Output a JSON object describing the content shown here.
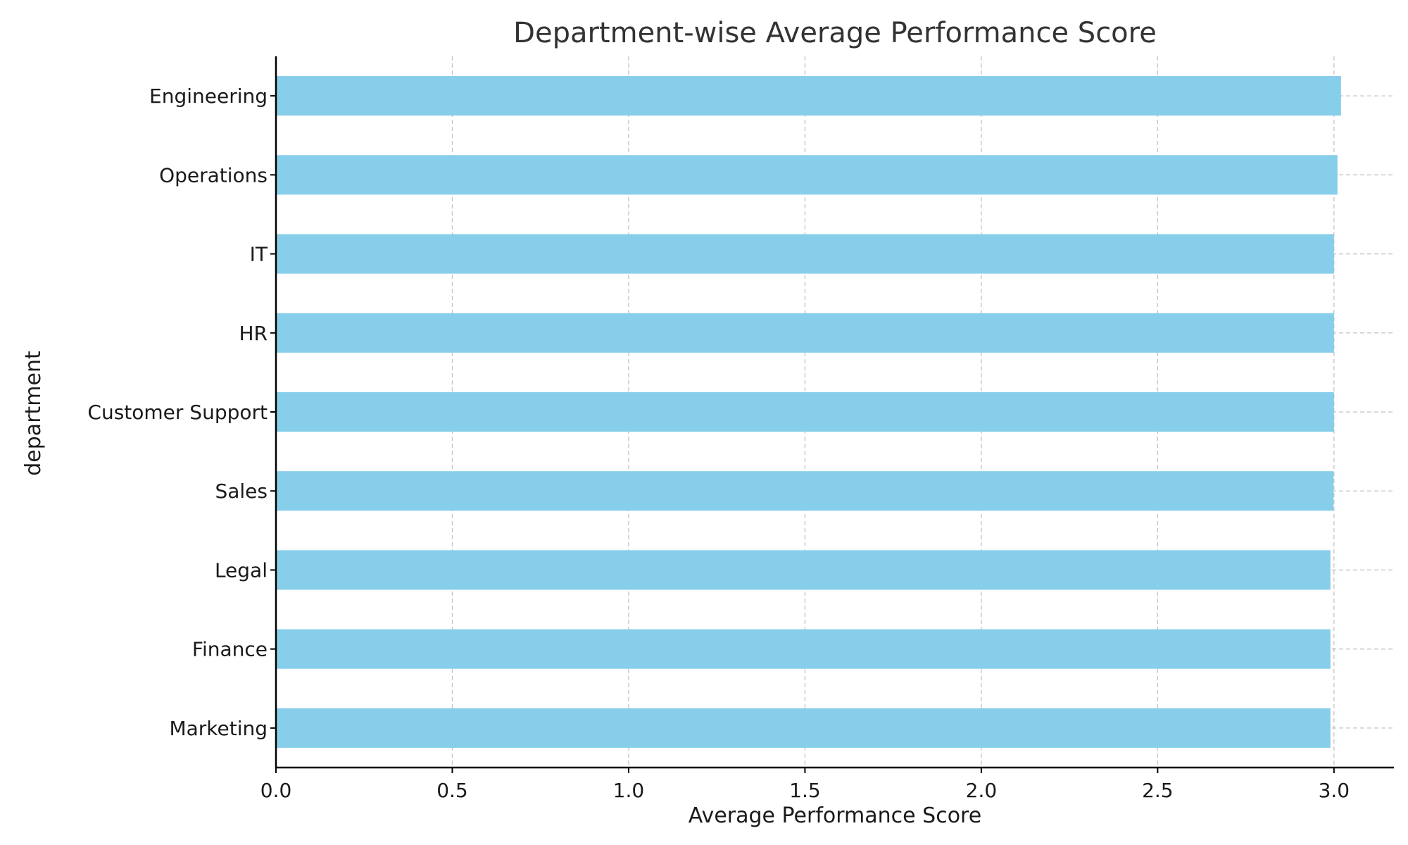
{
  "chart_data": {
    "type": "bar",
    "orientation": "horizontal",
    "title": "Department-wise Average Performance Score",
    "xlabel": "Average Performance Score",
    "ylabel": "department",
    "categories": [
      "Engineering",
      "Operations",
      "IT",
      "HR",
      "Customer Support",
      "Sales",
      "Legal",
      "Finance",
      "Marketing"
    ],
    "values": [
      3.02,
      3.01,
      3.0,
      3.0,
      3.0,
      2.999,
      2.99,
      2.99,
      2.99
    ],
    "xlim": [
      0,
      3.17
    ],
    "xticks": [
      "0.0",
      "0.5",
      "1.0",
      "1.5",
      "2.0",
      "2.5",
      "3.0"
    ],
    "grid": true,
    "bar_color": "#87CEEB"
  }
}
